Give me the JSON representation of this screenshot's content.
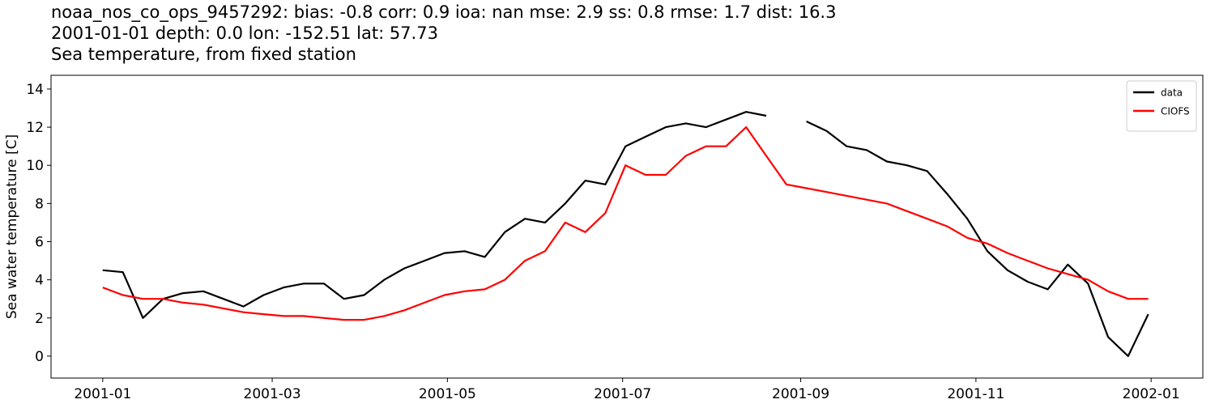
{
  "chart_data": {
    "type": "line",
    "title": [
      "noaa_nos_co_ops_9457292: bias: -0.8  corr: 0.9  ioa: nan  mse: 2.9  ss: 0.8  rmse: 1.7  dist: 16.3",
      "2001-01-01 depth: 0.0 lon: -152.51 lat: 57.73",
      "Sea temperature, from fixed station"
    ],
    "ylabel": "Sea water temperature [C]",
    "x": [
      "2001-01-01",
      "2001-01-08",
      "2001-01-15",
      "2001-01-22",
      "2001-01-29",
      "2001-02-05",
      "2001-02-12",
      "2001-02-19",
      "2001-02-26",
      "2001-03-05",
      "2001-03-12",
      "2001-03-19",
      "2001-03-26",
      "2001-04-02",
      "2001-04-09",
      "2001-04-16",
      "2001-04-23",
      "2001-04-30",
      "2001-05-07",
      "2001-05-14",
      "2001-05-21",
      "2001-05-28",
      "2001-06-04",
      "2001-06-11",
      "2001-06-18",
      "2001-06-25",
      "2001-07-02",
      "2001-07-09",
      "2001-07-16",
      "2001-07-23",
      "2001-07-30",
      "2001-08-06",
      "2001-08-13",
      "2001-08-20",
      "2001-08-27",
      "2001-09-03",
      "2001-09-10",
      "2001-09-17",
      "2001-09-24",
      "2001-10-01",
      "2001-10-08",
      "2001-10-15",
      "2001-10-22",
      "2001-10-29",
      "2001-11-05",
      "2001-11-12",
      "2001-11-19",
      "2001-11-26",
      "2001-12-03",
      "2001-12-10",
      "2001-12-17",
      "2001-12-24",
      "2001-12-31"
    ],
    "series": [
      {
        "name": "data",
        "color": "#000000",
        "values": [
          4.5,
          4.4,
          2.0,
          3.0,
          3.3,
          3.4,
          3.0,
          2.6,
          3.2,
          3.6,
          3.8,
          3.8,
          3.0,
          3.2,
          4.0,
          4.6,
          5.0,
          5.4,
          5.5,
          5.2,
          6.5,
          7.2,
          7.0,
          8.0,
          9.2,
          9.0,
          11.0,
          11.5,
          12.0,
          12.2,
          12.0,
          12.4,
          12.8,
          12.6,
          null,
          12.3,
          11.8,
          11.0,
          10.8,
          10.2,
          10.0,
          9.7,
          8.5,
          7.2,
          5.5,
          4.5,
          3.9,
          3.5,
          4.8,
          3.8,
          1.0,
          0.0,
          2.2
        ]
      },
      {
        "name": "CIOFS",
        "color": "#ff0000",
        "values": [
          3.6,
          3.2,
          3.0,
          3.0,
          2.8,
          2.7,
          2.5,
          2.3,
          2.2,
          2.1,
          2.1,
          2.0,
          1.9,
          1.9,
          2.1,
          2.4,
          2.8,
          3.2,
          3.4,
          3.5,
          4.0,
          5.0,
          5.5,
          7.0,
          6.5,
          7.5,
          10.0,
          9.5,
          9.5,
          10.5,
          11.0,
          11.0,
          12.0,
          10.5,
          9.0,
          8.8,
          8.6,
          8.4,
          8.2,
          8.0,
          7.6,
          7.2,
          6.8,
          6.2,
          5.9,
          5.4,
          5.0,
          4.6,
          4.3,
          4.0,
          3.4,
          3.0,
          3.0
        ]
      }
    ],
    "xlim": [
      "2000-12-14",
      "2002-01-19"
    ],
    "xticks": [
      {
        "value": "2001-01-01",
        "label": "2001-01"
      },
      {
        "value": "2001-03-01",
        "label": "2001-03"
      },
      {
        "value": "2001-05-01",
        "label": "2001-05"
      },
      {
        "value": "2001-07-01",
        "label": "2001-07"
      },
      {
        "value": "2001-09-01",
        "label": "2001-09"
      },
      {
        "value": "2001-11-01",
        "label": "2001-11"
      },
      {
        "value": "2002-01-01",
        "label": "2002-01"
      }
    ],
    "ylim": [
      -1.15,
      14.72
    ],
    "yticks": [
      0,
      2,
      4,
      6,
      8,
      10,
      12,
      14
    ],
    "grid": false,
    "legend": "upper-right"
  }
}
